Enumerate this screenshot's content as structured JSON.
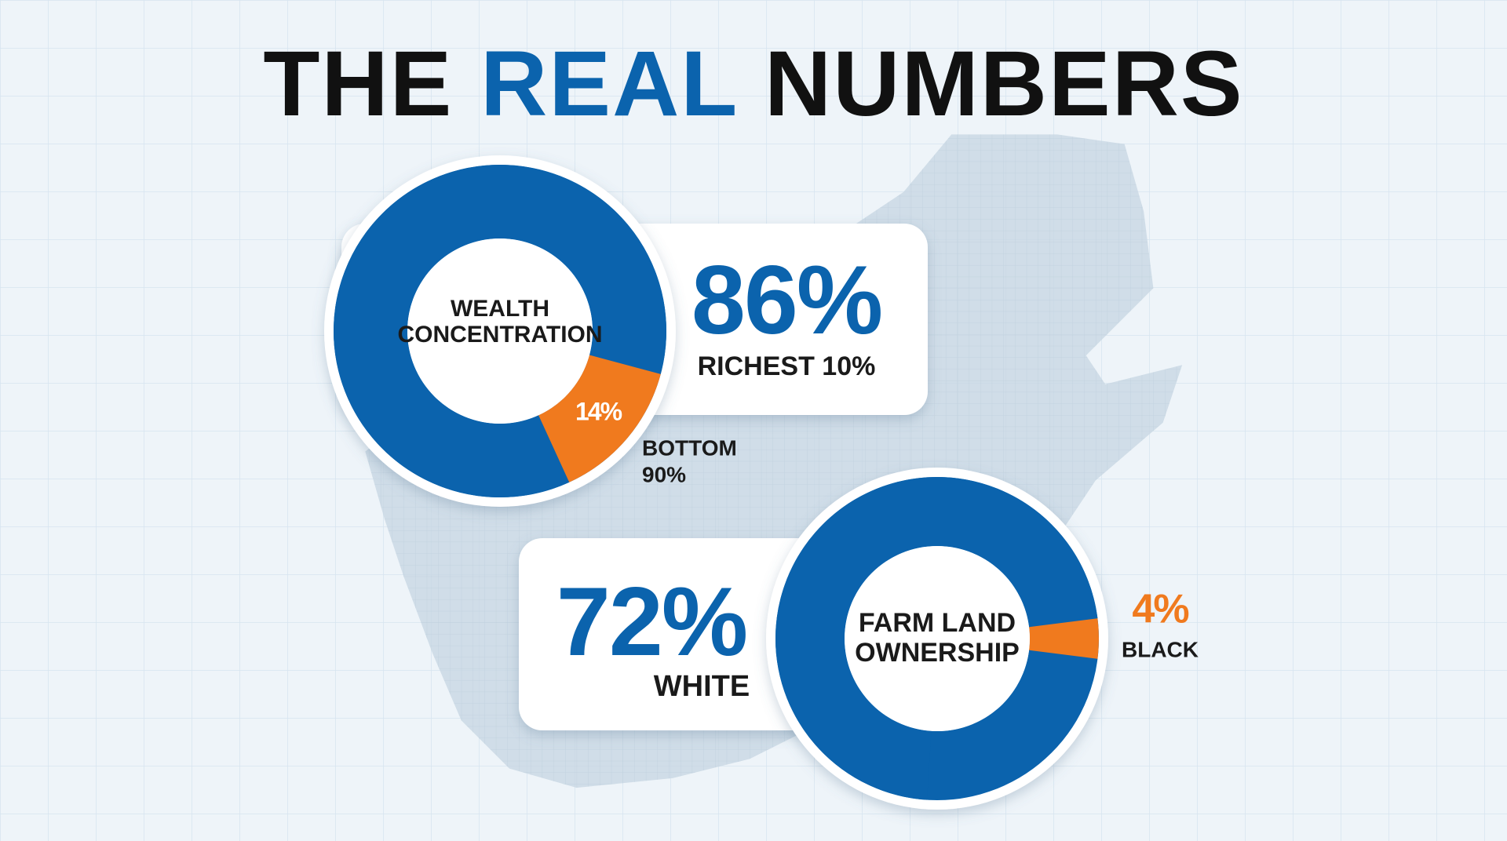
{
  "header": {
    "title": [
      {
        "text": "THE",
        "color": "#111111"
      },
      {
        "text": "REAL",
        "color": "#0b63ad"
      },
      {
        "text": "NUMBERS",
        "color": "#111111"
      }
    ]
  },
  "chart_data": [
    {
      "type": "donut",
      "title": [
        "WEALTH",
        "CONCENTRATION"
      ],
      "slices": [
        {
          "value": 86,
          "value_label": "86%",
          "label": [
            "RICHEST 10%"
          ],
          "color": "#0b63ad"
        },
        {
          "value": 14,
          "value_label": "14%",
          "label": [
            "BOTTOM",
            "90%"
          ],
          "color": "#f07a1e"
        }
      ]
    },
    {
      "type": "donut",
      "title": [
        "FARM LAND",
        "OWNERSHIP"
      ],
      "slices": [
        {
          "value": 72,
          "value_label": "72%",
          "label": [
            "WHITE"
          ],
          "color": "#0b63ad"
        },
        {
          "value": 4,
          "value_label": "4%",
          "label": [
            "BLACK"
          ],
          "color": "#f07a1e"
        }
      ]
    }
  ]
}
